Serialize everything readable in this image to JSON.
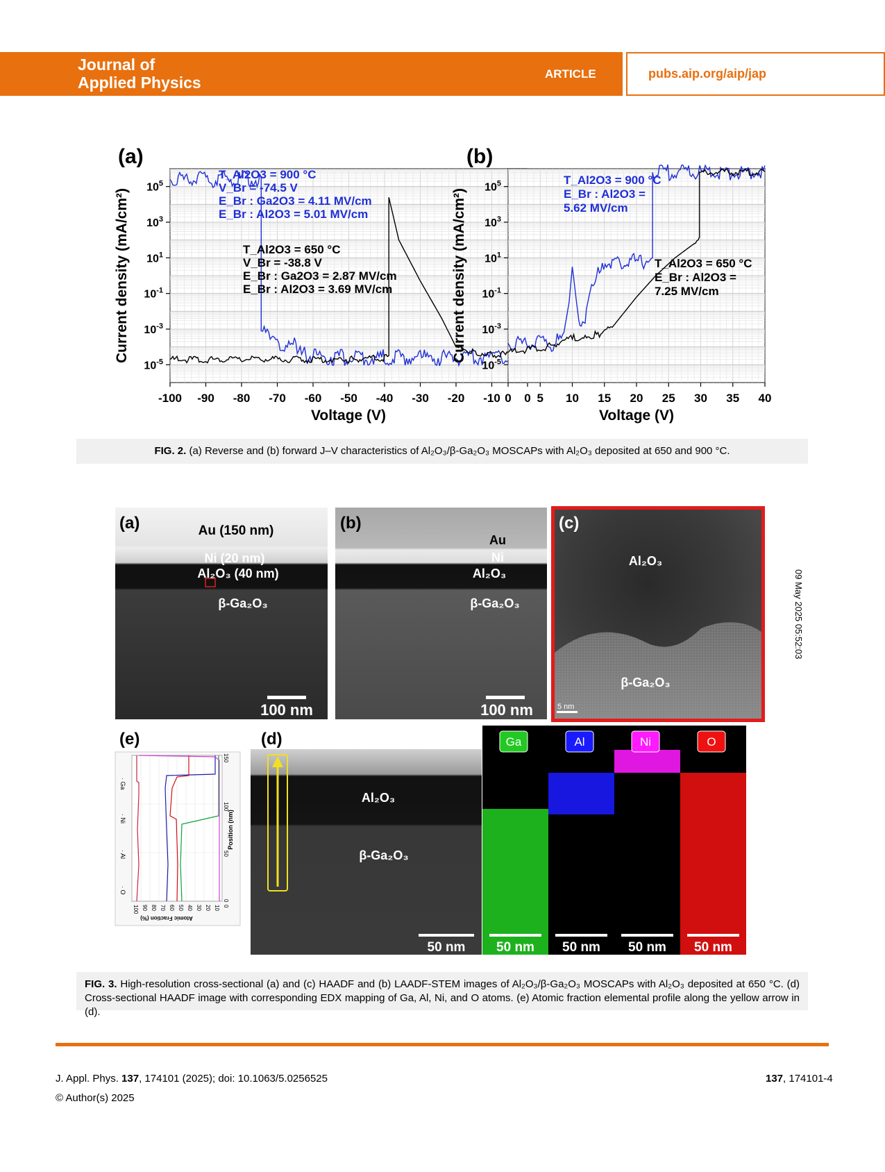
{
  "header": {
    "journal_line1": "Journal of",
    "journal_line2": "Applied Physics",
    "article": "ARTICLE",
    "url": "pubs.aip.org/aip/jap",
    "accent_color": "#e8700f"
  },
  "chart_data": [
    {
      "type": "line",
      "panel": "(a)",
      "xlabel": "Voltage (V)",
      "ylabel": "Current density (mA/cm²)",
      "xlim": [
        -100,
        0
      ],
      "ylim_log10": [
        -6,
        6
      ],
      "x_ticks": [
        "-100",
        "-90",
        "-80",
        "-70",
        "-60",
        "-50",
        "-40",
        "-30",
        "-20",
        "-10",
        "0"
      ],
      "y_ticks": [
        "10^5",
        "10^3",
        "10^1",
        "10^-1",
        "10^-3",
        "10^-5"
      ],
      "grid": true,
      "annotations": {
        "blue": [
          "T_Al2O3 = 900 °C",
          "V_Br = -74.5 V",
          "E_Br : Ga2O3 = 4.11 MV/cm",
          "E_Br : Al2O3 = 5.01 MV/cm"
        ],
        "black": [
          "T_Al2O3 = 650 °C",
          "V_Br = -38.8 V",
          "E_Br : Ga2O3 = 2.87 MV/cm",
          "E_Br : Al2O3 = 3.69 MV/cm"
        ]
      },
      "series": [
        {
          "color": "#1f2fd6",
          "x": [
            -100,
            -74.5,
            -74.5,
            -72,
            -66,
            -62,
            -62,
            -50,
            -30,
            -10,
            0
          ],
          "y_log10": [
            5.4,
            5.4,
            -3.1,
            -3.6,
            -3.9,
            -4.0,
            -4.5,
            -4.6,
            -4.6,
            -4.6,
            -4.7
          ]
        },
        {
          "color": "#000000",
          "x": [
            -100,
            -50,
            -38.8,
            -38.8,
            -36,
            -30,
            -24,
            -20,
            -15,
            -10,
            0
          ],
          "y_log10": [
            -4.7,
            -4.7,
            -4.6,
            4.4,
            2.0,
            -0.3,
            -2.4,
            -4.0,
            -4.3,
            -4.4,
            -4.5
          ]
        }
      ]
    },
    {
      "type": "line",
      "panel": "(b)",
      "xlabel": "Voltage (V)",
      "ylabel": "Current density (mA/cm²)",
      "xlim": [
        0,
        40
      ],
      "ylim_log10": [
        -6,
        6
      ],
      "x_ticks": [
        "0",
        "5",
        "10",
        "15",
        "20",
        "25",
        "30",
        "35",
        "40"
      ],
      "y_ticks": [
        "10^5",
        "10^3",
        "10^1",
        "10^-1",
        "10^-3",
        "10^-5"
      ],
      "grid": true,
      "annotations": {
        "blue": [
          "T_Al2O3 = 900 °C",
          "E_Br : Al2O3 =",
          "5.62 MV/cm"
        ],
        "black": [
          "T_Al2O3 = 650 °C",
          "E_Br : Al2O3 =",
          "7.25 MV/cm"
        ]
      },
      "series": [
        {
          "color": "#1f2fd6",
          "x": [
            0,
            7,
            8.5,
            9.5,
            10,
            11,
            12,
            13,
            14,
            16,
            20,
            22,
            22.5,
            22.5,
            40
          ],
          "y_log10": [
            -3.8,
            -3.8,
            -3.6,
            -1.5,
            0.5,
            -2.5,
            -2.2,
            -0.5,
            0.1,
            0.6,
            0.8,
            0.9,
            1.0,
            5.8,
            5.8
          ]
        },
        {
          "color": "#000000",
          "x": [
            0,
            6,
            10,
            12,
            14,
            16,
            18,
            20,
            23,
            26,
            29,
            29.8,
            29.8,
            30,
            40
          ],
          "y_log10": [
            -4.3,
            -4.0,
            -3.5,
            -3.4,
            -3.3,
            -3.0,
            -2.1,
            -1.2,
            0.0,
            1.0,
            1.8,
            2.2,
            5.8,
            5.8,
            5.8
          ]
        }
      ]
    }
  ],
  "fig2_caption": {
    "label": "FIG. 2.",
    "text": "(a) Reverse and (b) forward J–V characteristics of Al₂O₃/β-Ga₂O₃ MOSCAPs with Al₂O₃ deposited at 650 and 900 °C."
  },
  "fig3": {
    "panel_a": {
      "label": "(a)",
      "au": "Au (150 nm)",
      "ni": "Ni (20 nm)",
      "al2o3": "Al₂O₃ (40 nm)",
      "ga2o3": "β-Ga₂O₃",
      "scale": "100 nm"
    },
    "panel_b": {
      "label": "(b)",
      "au": "Au",
      "ni": "Ni",
      "al2o3": "Al₂O₃",
      "ga2o3": "β-Ga₂O₃",
      "scale": "100 nm"
    },
    "panel_c": {
      "label": "(c)",
      "al2o3": "Al₂O₃",
      "ga2o3": "β-Ga₂O₃",
      "scale": "5 nm"
    },
    "panel_d": {
      "label": "(d)",
      "al2o3": "Al₂O₃",
      "ga2o3": "β-Ga₂O₃",
      "scale": "50 nm"
    },
    "edx_maps": [
      {
        "element": "Ga",
        "scale": "50 nm",
        "color": "#22c922"
      },
      {
        "element": "Al",
        "scale": "50 nm",
        "color": "#1a1aff"
      },
      {
        "element": "Ni",
        "scale": "50 nm",
        "color": "#ff1aff"
      },
      {
        "element": "O",
        "scale": "50 nm",
        "color": "#ee1111"
      }
    ],
    "panel_e": {
      "label": "(e)",
      "xlabel": "Atomic Fraction (%)",
      "ylabel": "Position (nm)",
      "x_ticks": [
        "100",
        "90",
        "80",
        "70",
        "60",
        "50",
        "40",
        "30",
        "20",
        "10",
        "0"
      ],
      "y_ticks": [
        "0",
        "50",
        "100",
        "150"
      ],
      "legend": [
        "Ga",
        "Ni",
        "Al",
        "O"
      ]
    }
  },
  "fig3_caption": {
    "label": "FIG. 3.",
    "text": "High-resolution cross-sectional (a) and (c) HAADF and (b) LAADF-STEM images of Al₂O₃/β-Ga₂O₃ MOSCAPs with Al₂O₃ deposited at 650 °C. (d) Cross-sectional HAADF image with corresponding EDX mapping of Ga, Al, Ni, and O atoms. (e) Atomic fraction elemental profile along the yellow arrow in (d)."
  },
  "footer": {
    "citation_prefix": "J. Appl. Phys. ",
    "citation_volume": "137",
    "citation_rest": ", 174101 (2025); doi: 10.1063/5.0256525",
    "copyright": "© Author(s) 2025",
    "page_volume": "137",
    "page_rest": ", 174101-4"
  },
  "side_stamp": "09 May 2025 05:52:03"
}
